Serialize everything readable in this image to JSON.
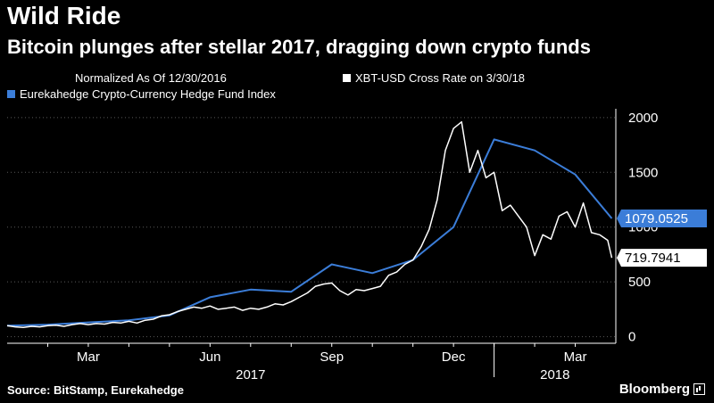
{
  "chart_data": {
    "type": "line",
    "title": "Wild Ride",
    "subtitle": "Bitcoin plunges after stellar 2017, dragging down crypto funds",
    "legend": [
      {
        "label": "Normalized As Of 12/30/2016",
        "color": ""
      },
      {
        "label": "XBT-USD Cross Rate  on 3/30/18",
        "color": "#ffffff"
      },
      {
        "label": "Eurekahedge Crypto-Currency Hedge Fund Index",
        "color": "#3b7dd8"
      }
    ],
    "x_axis": {
      "month_ticks": [
        {
          "label": "Mar",
          "t": 2.0
        },
        {
          "label": "Jun",
          "t": 5.0
        },
        {
          "label": "Sep",
          "t": 8.0
        },
        {
          "label": "Dec",
          "t": 11.0
        },
        {
          "label": "Mar",
          "t": 14.0
        }
      ],
      "year_labels": [
        {
          "label": "2017",
          "t": 6.0
        },
        {
          "label": "2018",
          "t": 13.5
        }
      ],
      "year_divider_t": 12.0,
      "range": [
        0,
        15.0
      ],
      "t_unit": "months since 12/30/2016"
    },
    "y_axis": {
      "ticks": [
        "2000",
        "1500",
        "1000",
        "500",
        "0"
      ],
      "tick_values": [
        2000,
        1500,
        1000,
        500,
        0
      ],
      "range": [
        -60,
        2080
      ],
      "side": "right"
    },
    "series": [
      {
        "name": "Eurekahedge Crypto-Currency Hedge Fund Index",
        "color": "#3b7dd8",
        "t": [
          0,
          1,
          2,
          3,
          4,
          5,
          6,
          7,
          8,
          9,
          10,
          11,
          12,
          13,
          14,
          14.9
        ],
        "values": [
          100,
          110,
          130,
          150,
          195,
          360,
          430,
          410,
          660,
          580,
          700,
          1000,
          1800,
          1700,
          1480,
          1079.0525
        ],
        "last_label": "1079.0525"
      },
      {
        "name": "XBT-USD Cross Rate",
        "color": "#ffffff",
        "t": [
          0,
          0.2,
          0.4,
          0.6,
          0.8,
          1.0,
          1.2,
          1.4,
          1.6,
          1.8,
          2.0,
          2.2,
          2.4,
          2.6,
          2.8,
          3.0,
          3.2,
          3.4,
          3.6,
          3.8,
          4.0,
          4.2,
          4.4,
          4.6,
          4.8,
          5.0,
          5.2,
          5.4,
          5.6,
          5.8,
          6.0,
          6.2,
          6.4,
          6.6,
          6.8,
          7.0,
          7.2,
          7.4,
          7.6,
          7.8,
          8.0,
          8.2,
          8.4,
          8.6,
          8.8,
          9.0,
          9.2,
          9.4,
          9.6,
          9.8,
          10.0,
          10.2,
          10.4,
          10.6,
          10.8,
          11.0,
          11.2,
          11.4,
          11.6,
          11.8,
          12.0,
          12.2,
          12.4,
          12.6,
          12.8,
          13.0,
          13.2,
          13.4,
          13.6,
          13.8,
          14.0,
          14.2,
          14.4,
          14.6,
          14.8,
          14.9
        ],
        "values": [
          100,
          90,
          85,
          95,
          90,
          100,
          105,
          95,
          110,
          120,
          110,
          120,
          115,
          130,
          125,
          140,
          125,
          150,
          160,
          190,
          200,
          230,
          250,
          270,
          260,
          280,
          250,
          260,
          270,
          240,
          260,
          250,
          270,
          300,
          290,
          320,
          360,
          400,
          460,
          480,
          490,
          420,
          380,
          430,
          420,
          440,
          460,
          560,
          590,
          660,
          700,
          820,
          980,
          1250,
          1700,
          1900,
          1960,
          1500,
          1700,
          1450,
          1500,
          1150,
          1200,
          1100,
          1000,
          740,
          930,
          890,
          1100,
          1140,
          1000,
          1220,
          950,
          930,
          880,
          719.7941
        ],
        "last_label": "719.7941"
      }
    ]
  },
  "footer": {
    "source": "Source: BitStamp, Eurekahedge",
    "brand": "Bloomberg"
  }
}
